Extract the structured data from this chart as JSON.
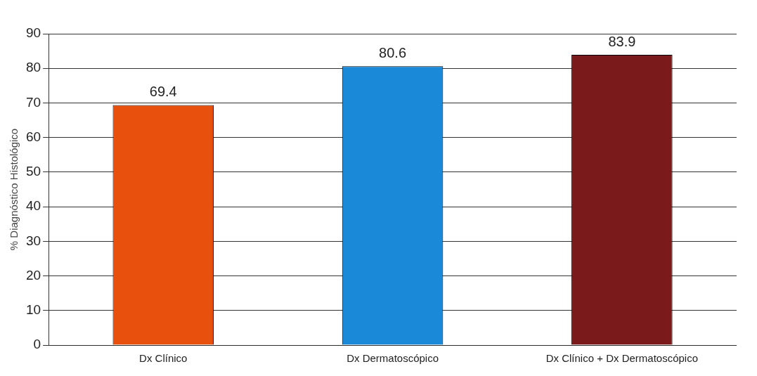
{
  "chart_data": {
    "type": "bar",
    "ylabel": "% Diagnóstico Histológico",
    "categories": [
      "Dx Clínico",
      "Dx Dermatoscópico",
      "Dx Clínico + Dx Dermatoscópico"
    ],
    "values": [
      69.4,
      80.6,
      83.9
    ],
    "colors": [
      "#e8500e",
      "#1a8ad8",
      "#7a1a1a"
    ],
    "ylim": [
      0,
      90
    ],
    "yticks": [
      0,
      10,
      20,
      30,
      40,
      50,
      60,
      70,
      80,
      90
    ],
    "grid": "y",
    "data_labels": true,
    "legend": false
  }
}
